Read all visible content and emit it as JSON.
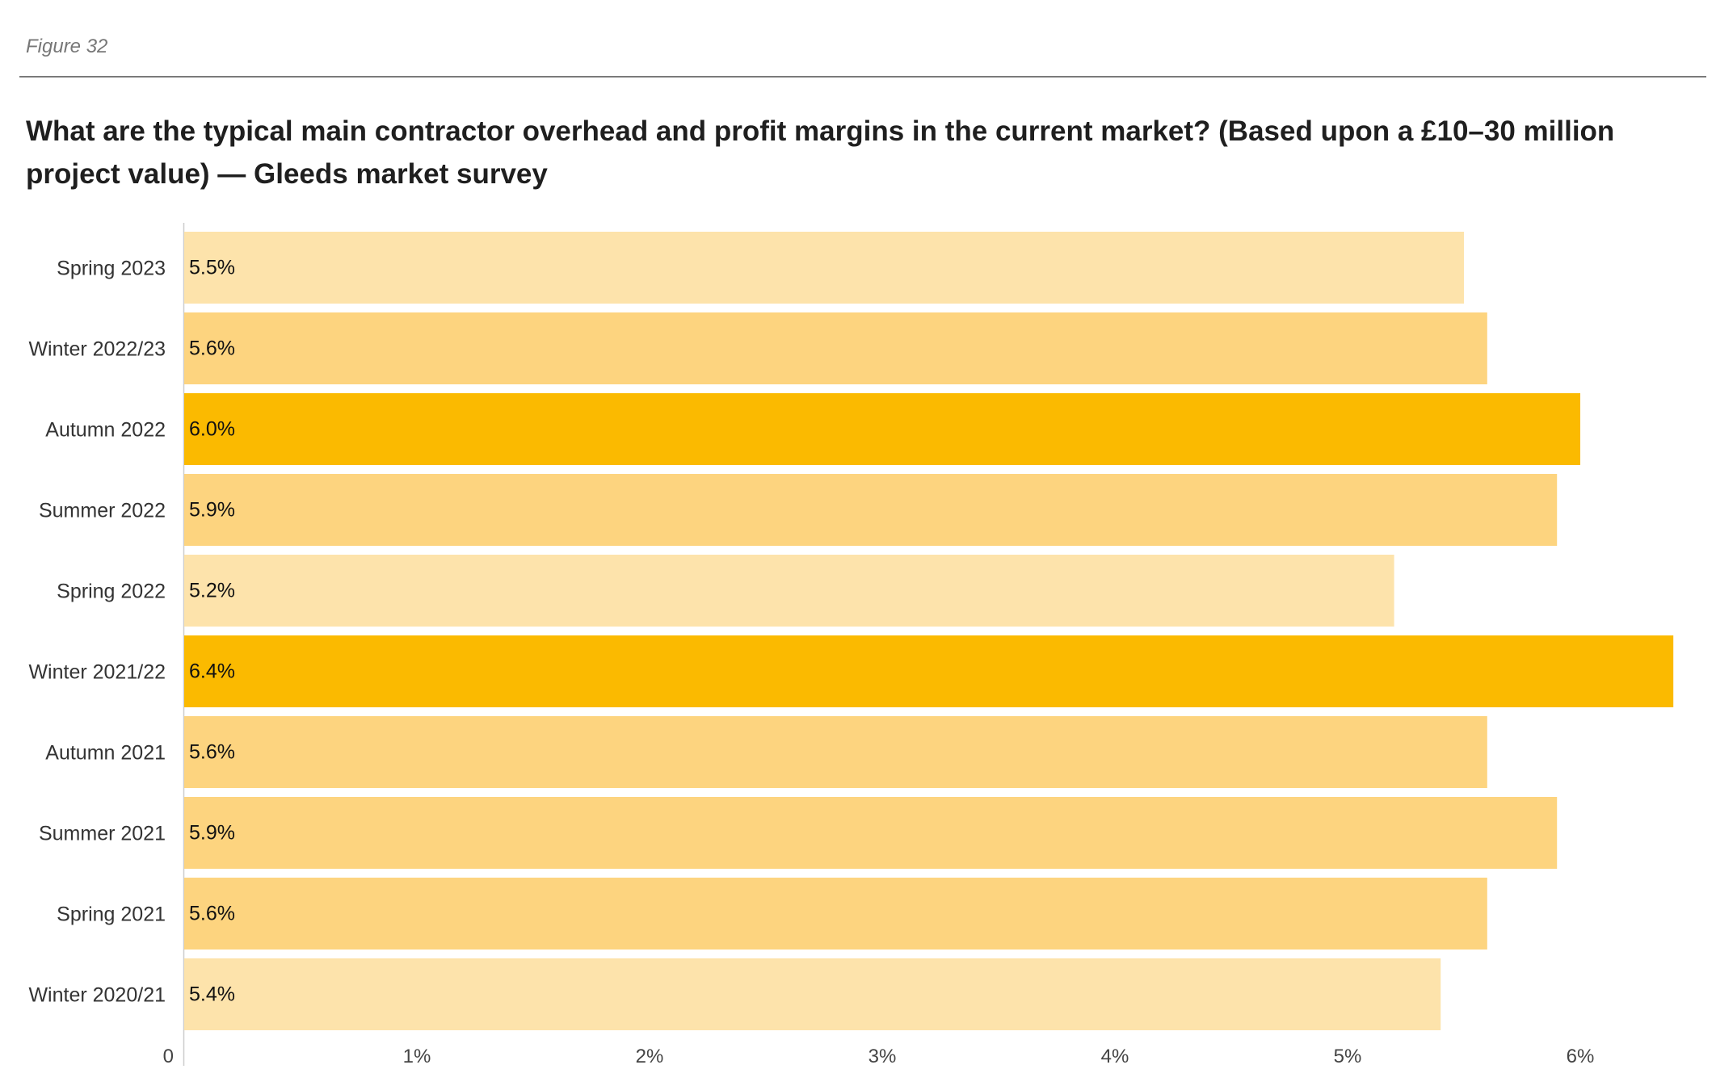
{
  "figure_label": "Figure 32",
  "chart_data": {
    "type": "bar",
    "orientation": "horizontal",
    "title": "What are the typical main contractor overhead and profit margins in the current market? (Based upon a £10–30 million project value) — Gleeds market survey",
    "categories": [
      "Spring 2023",
      "Winter 2022/23",
      "Autumn 2022",
      "Summer 2022",
      "Spring 2022",
      "Winter 2021/22",
      "Autumn 2021",
      "Summer 2021",
      "Spring 2021",
      "Winter 2020/21"
    ],
    "values": [
      5.5,
      5.6,
      6.0,
      5.9,
      5.2,
      6.4,
      5.6,
      5.9,
      5.6,
      5.4
    ],
    "value_labels": [
      "5.5%",
      "5.6%",
      "6.0%",
      "5.9%",
      "5.2%",
      "6.4%",
      "5.6%",
      "5.9%",
      "5.6%",
      "5.4%"
    ],
    "xlim": [
      0,
      6.4
    ],
    "x_ticks": [
      0,
      1,
      2,
      3,
      4,
      5,
      6
    ],
    "x_tick_labels": [
      "0",
      "1%",
      "2%",
      "3%",
      "4%",
      "5%",
      "6%"
    ],
    "grid": false,
    "legend": "none",
    "colors": {
      "low": "#fde3ab",
      "mid": "#fdd47f",
      "high": "#fbba00"
    },
    "bar_shade": [
      "low",
      "mid",
      "high",
      "mid",
      "low",
      "high",
      "mid",
      "mid",
      "mid",
      "low"
    ]
  }
}
